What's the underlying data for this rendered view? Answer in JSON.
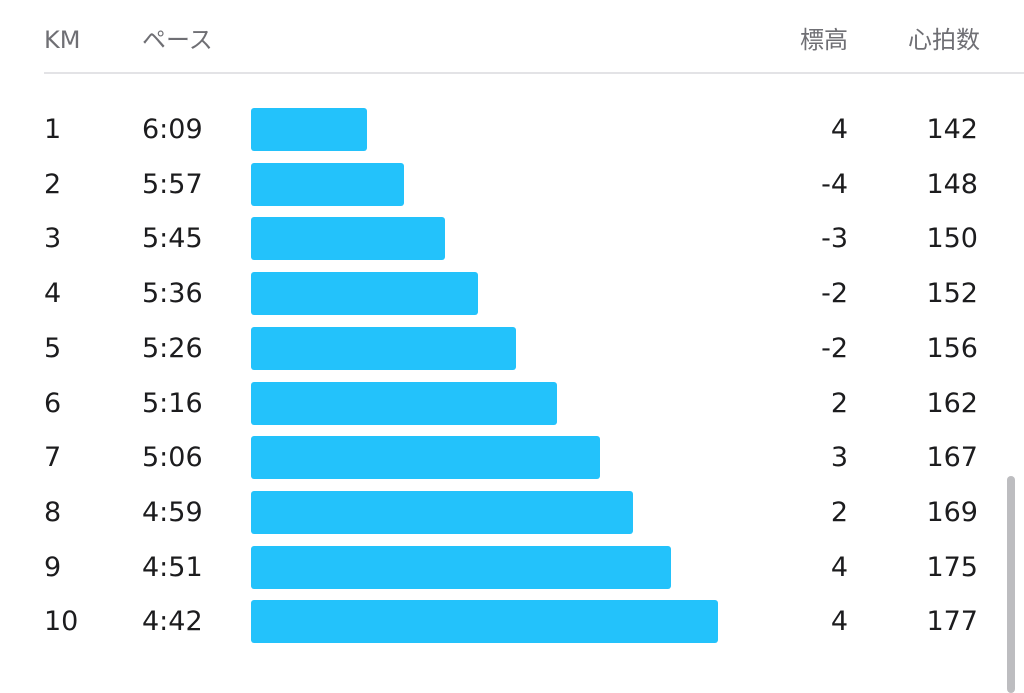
{
  "header": {
    "km": "KM",
    "pace": "ペース",
    "elevation": "標高",
    "heart_rate": "心拍数"
  },
  "colors": {
    "bar": "#23c2fb",
    "header_text": "#6f6f74",
    "divider": "#e3e3e6"
  },
  "chart_data": {
    "type": "bar",
    "orientation": "horizontal",
    "categories": [
      "1",
      "2",
      "3",
      "4",
      "5",
      "6",
      "7",
      "8",
      "9",
      "10"
    ],
    "pace": [
      "6:09",
      "5:57",
      "5:45",
      "5:36",
      "5:26",
      "5:16",
      "5:06",
      "4:59",
      "4:51",
      "4:42"
    ],
    "elevation": [
      "4",
      "-4",
      "-3",
      "-2",
      "-2",
      "2",
      "3",
      "2",
      "4",
      "4"
    ],
    "heart_rate": [
      "142",
      "148",
      "150",
      "152",
      "156",
      "162",
      "167",
      "169",
      "175",
      "177"
    ],
    "speed_kmh": [
      9.76,
      10.08,
      10.43,
      10.71,
      11.04,
      11.39,
      11.76,
      12.04,
      12.37,
      12.77
    ]
  }
}
